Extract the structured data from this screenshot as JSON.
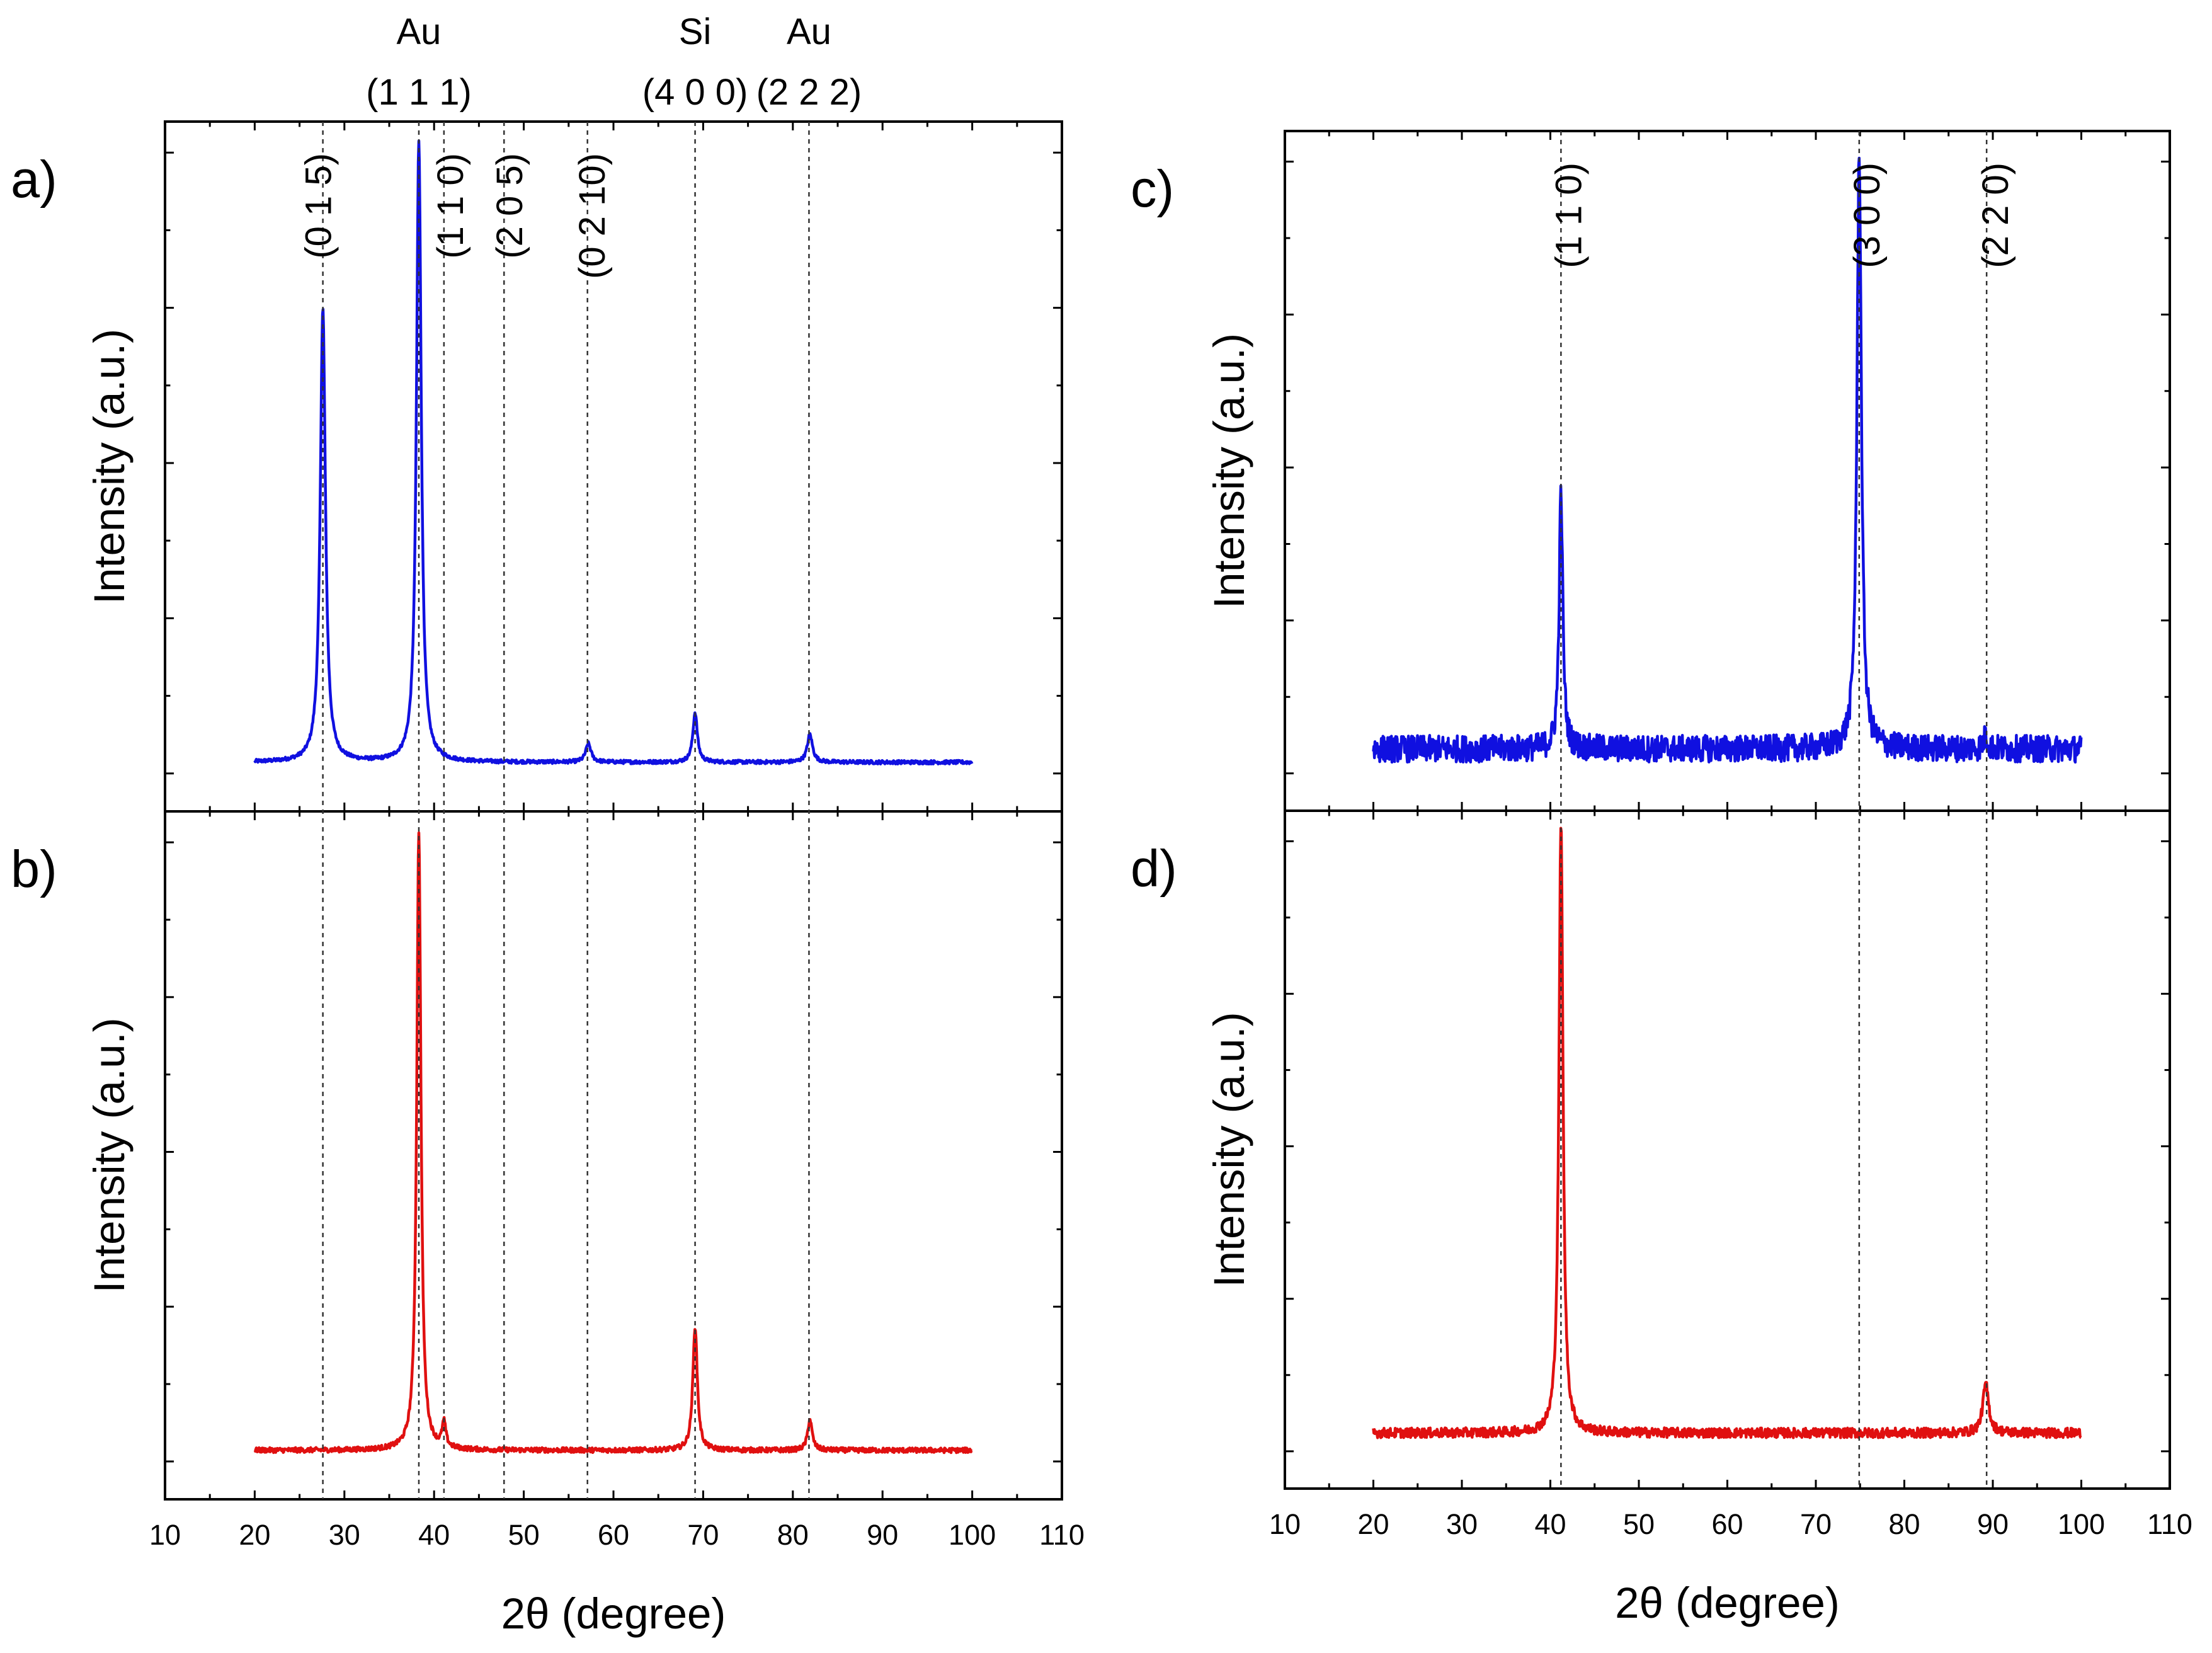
{
  "chart_data": [
    {
      "panel": "a)",
      "type": "line",
      "ylabel": "Intensity (a.u.)",
      "xlabel": "",
      "xlim": [
        10,
        110
      ],
      "ylim": [
        0,
        1
      ],
      "xticks": [
        "10",
        "20",
        "30",
        "40",
        "50",
        "60",
        "70",
        "80",
        "90",
        "100",
        "110"
      ],
      "color": "#1010e0",
      "x_range": [
        20,
        100
      ],
      "baseline": 0.018,
      "noise": 0.003,
      "peaks": [
        {
          "x": 27.6,
          "height": 0.73,
          "width": 0.35
        },
        {
          "x": 38.3,
          "height": 1.0,
          "width": 0.32
        },
        {
          "x": 57.2,
          "height": 0.03,
          "width": 0.35
        },
        {
          "x": 69.1,
          "height": 0.08,
          "width": 0.3
        },
        {
          "x": 81.9,
          "height": 0.045,
          "width": 0.35
        }
      ],
      "ref_lines": [
        27.6,
        38.3,
        41.1,
        47.8,
        57.1,
        69.1,
        81.8
      ],
      "annotations": [
        {
          "text": "(0 1 5)",
          "x": 28.5
        },
        {
          "text": "(1 1 0)",
          "x": 43.2
        },
        {
          "text": "(2 0 5)",
          "x": 49.8
        },
        {
          "text": "(0 2 10)",
          "x": 59.0
        }
      ],
      "top_annotations": [
        {
          "line1": "Au",
          "line2": "(1 1 1)",
          "x": 38.3
        },
        {
          "line1": "Si",
          "line2": "(4 0 0)",
          "x": 69.1
        },
        {
          "line1": "Au",
          "line2": "(2 2 2)",
          "x": 81.8
        }
      ]
    },
    {
      "panel": "b)",
      "type": "line",
      "ylabel": "Intensity (a.u.)",
      "xlabel": "2θ (degree)",
      "xlim": [
        10,
        110
      ],
      "ylim": [
        0,
        1
      ],
      "xticks": [
        "10",
        "20",
        "30",
        "40",
        "50",
        "60",
        "70",
        "80",
        "90",
        "100",
        "110"
      ],
      "color": "#e01010",
      "x_range": [
        20,
        100
      ],
      "baseline": 0.018,
      "noise": 0.004,
      "peaks": [
        {
          "x": 38.3,
          "height": 1.0,
          "width": 0.28
        },
        {
          "x": 41.1,
          "height": 0.04,
          "width": 0.25
        },
        {
          "x": 69.1,
          "height": 0.2,
          "width": 0.3
        },
        {
          "x": 81.9,
          "height": 0.05,
          "width": 0.3
        }
      ]
    },
    {
      "panel": "c)",
      "type": "line",
      "ylabel": "Intensity (a.u.)",
      "xlabel": "",
      "xlim": [
        10,
        110
      ],
      "ylim": [
        0,
        1
      ],
      "xticks": [
        "10",
        "20",
        "30",
        "40",
        "50",
        "60",
        "70",
        "80",
        "90",
        "100",
        "110"
      ],
      "color": "#1010e0",
      "x_range": [
        20,
        100
      ],
      "baseline": 0.04,
      "noise": 0.022,
      "peaks": [
        {
          "x": 41.2,
          "height": 0.42,
          "width": 0.25
        },
        {
          "x": 74.9,
          "height": 0.98,
          "width": 0.3
        },
        {
          "x": 89.2,
          "height": 0.02,
          "width": 0.3
        }
      ],
      "ref_lines": [
        41.2,
        74.9,
        89.3
      ],
      "annotations": [
        {
          "text": "(1 1 0)",
          "x": 43.5
        },
        {
          "text": "(3 0 0)",
          "x": 77.2
        },
        {
          "text": "(2 2 0)",
          "x": 91.7
        }
      ]
    },
    {
      "panel": "d)",
      "type": "line",
      "ylabel": "Intensity (a.u.)",
      "xlabel": "2θ (degree)",
      "xlim": [
        10,
        110
      ],
      "ylim": [
        0,
        1
      ],
      "xticks": [
        "10",
        "20",
        "30",
        "40",
        "50",
        "60",
        "70",
        "80",
        "90",
        "100",
        "110"
      ],
      "color": "#e01010",
      "x_range": [
        20,
        100
      ],
      "baseline": 0.03,
      "noise": 0.008,
      "peaks": [
        {
          "x": 41.2,
          "height": 1.0,
          "width": 0.28
        },
        {
          "x": 89.2,
          "height": 0.08,
          "width": 0.4
        }
      ]
    }
  ]
}
